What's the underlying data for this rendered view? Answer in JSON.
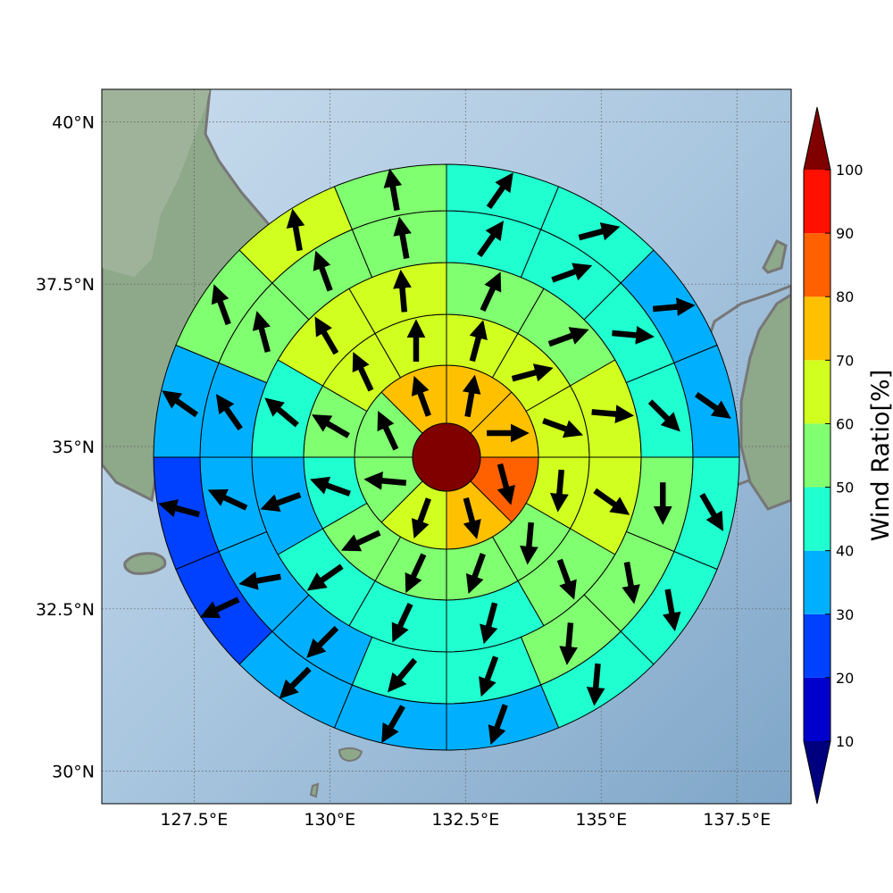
{
  "colorbar": {
    "title": "Wind Ratio[%]",
    "ticks": [
      "10",
      "20",
      "30",
      "40",
      "50",
      "60",
      "70",
      "80",
      "90",
      "100"
    ],
    "levels": [
      10,
      20,
      30,
      40,
      50,
      60,
      70,
      80,
      90,
      100
    ],
    "colors": [
      "#0000cd",
      "#0040ff",
      "#00b0ff",
      "#20ffd0",
      "#80ff70",
      "#d0ff20",
      "#ffc000",
      "#ff6000",
      "#ff1000"
    ],
    "under_color": "#00007f",
    "over_color": "#800000"
  },
  "map": {
    "lon_labels": [
      "127.5°E",
      "130°E",
      "132.5°E",
      "135°E",
      "137.5°E"
    ],
    "lat_labels": [
      "30°N",
      "32.5°N",
      "35°N",
      "37.5°N",
      "40°N"
    ],
    "lon_ticks": [
      127.5,
      130,
      132.5,
      135,
      137.5
    ],
    "lat_ticks": [
      30,
      32.5,
      35,
      37.5,
      40
    ],
    "lon_range": [
      125.8,
      138.5
    ],
    "lat_range": [
      29.5,
      40.5
    ],
    "ocean_color": "#8fb3d3",
    "land_color": "#8ea88a",
    "coast_color": "#777777"
  },
  "chart_data": {
    "type": "heatmap",
    "title": "",
    "center": {
      "lon": 132.5,
      "lat": 35.0
    },
    "variable": "Wind Ratio[%]",
    "center_cell": {
      "value": 100
    },
    "rings": [
      {
        "sectors": 8,
        "values": [
          75,
          75,
          85,
          75,
          63,
          55,
          55,
          75
        ],
        "arrows_deg": [
          10,
          90,
          165,
          165,
          200,
          275,
          335,
          340
        ]
      },
      {
        "sectors": 12,
        "values": [
          65,
          65,
          65,
          65,
          55,
          55,
          55,
          55,
          45,
          55,
          65,
          65
        ],
        "arrows_deg": [
          15,
          75,
          110,
          185,
          185,
          200,
          205,
          245,
          290,
          300,
          335,
          0
        ]
      },
      {
        "sectors": 12,
        "values": [
          55,
          55,
          65,
          65,
          55,
          45,
          45,
          45,
          35,
          45,
          65,
          65
        ],
        "arrows_deg": [
          25,
          70,
          95,
          125,
          160,
          195,
          205,
          235,
          250,
          310,
          330,
          355
        ]
      },
      {
        "sectors": 16,
        "values": [
          45,
          45,
          45,
          45,
          55,
          55,
          55,
          45,
          45,
          35,
          35,
          35,
          35,
          55,
          55,
          55
        ],
        "arrows_deg": [
          35,
          70,
          95,
          135,
          180,
          170,
          185,
          200,
          220,
          225,
          260,
          295,
          325,
          345,
          340,
          350
        ]
      },
      {
        "sectors": 16,
        "values": [
          45,
          45,
          35,
          35,
          45,
          45,
          45,
          35,
          35,
          35,
          25,
          25,
          35,
          55,
          65,
          55
        ],
        "arrows_deg": [
          35,
          75,
          85,
          125,
          150,
          170,
          185,
          200,
          210,
          225,
          245,
          285,
          305,
          340,
          350,
          350
        ]
      }
    ]
  }
}
